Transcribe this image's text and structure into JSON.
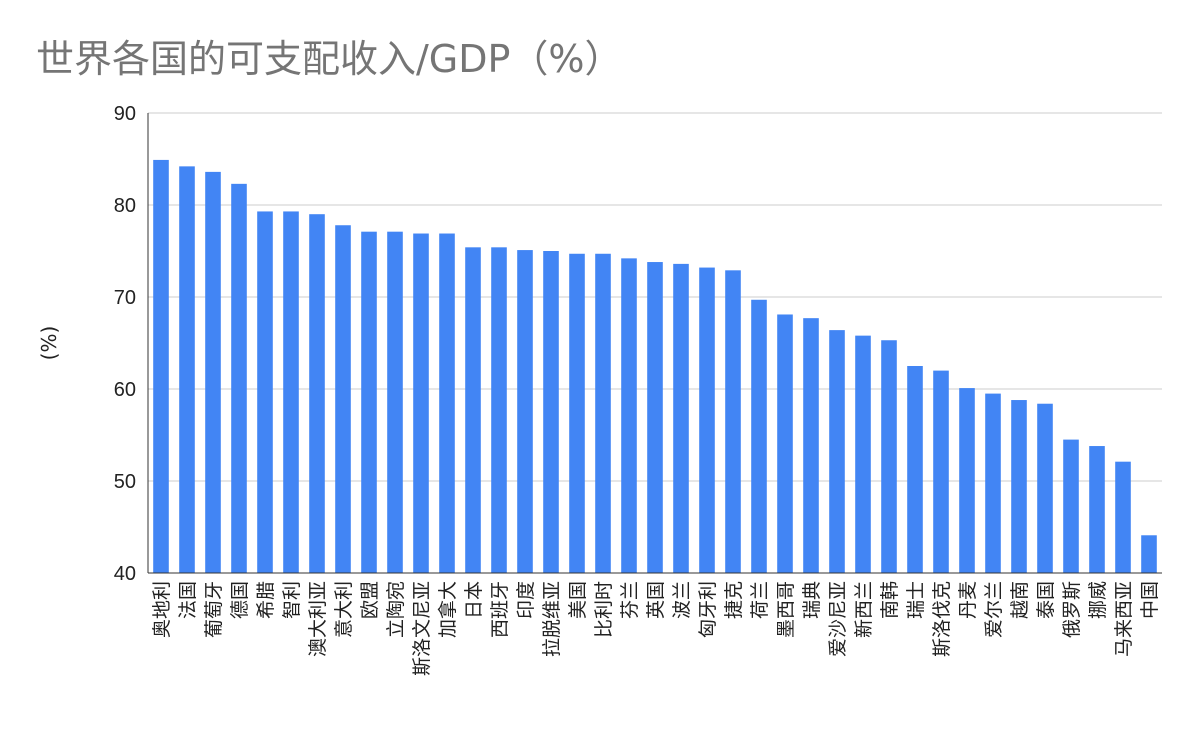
{
  "chart_data": {
    "type": "bar",
    "title": "世界各国的可支配收入/GDP（%）",
    "xlabel": "",
    "ylabel": "(%)",
    "ylim": [
      40,
      90
    ],
    "yticks": [
      40,
      50,
      60,
      70,
      80,
      90
    ],
    "grid": true,
    "legend": "none",
    "bar_color": "#4285f4",
    "categories": [
      "奥地利",
      "法国",
      "葡萄牙",
      "德国",
      "希腊",
      "智利",
      "澳大利亚",
      "意大利",
      "欧盟",
      "立陶宛",
      "斯洛文尼亚",
      "加拿大",
      "日本",
      "西班牙",
      "印度",
      "拉脱维亚",
      "美国",
      "比利时",
      "芬兰",
      "英国",
      "波兰",
      "匈牙利",
      "捷克",
      "荷兰",
      "墨西哥",
      "瑞典",
      "爱沙尼亚",
      "新西兰",
      "南韩",
      "瑞士",
      "斯洛伐克",
      "丹麦",
      "爱尔兰",
      "越南",
      "泰国",
      "俄罗斯",
      "挪威",
      "马来西亚",
      "中国"
    ],
    "values": [
      84.9,
      84.2,
      83.6,
      82.3,
      79.3,
      79.3,
      79.0,
      77.8,
      77.1,
      77.1,
      76.9,
      76.9,
      75.4,
      75.4,
      75.1,
      75.0,
      74.7,
      74.7,
      74.2,
      73.8,
      73.6,
      73.2,
      72.9,
      69.7,
      68.1,
      67.7,
      66.4,
      65.8,
      65.3,
      62.5,
      62.0,
      60.1,
      59.5,
      58.8,
      58.4,
      54.5,
      53.8,
      52.1,
      44.1
    ]
  }
}
